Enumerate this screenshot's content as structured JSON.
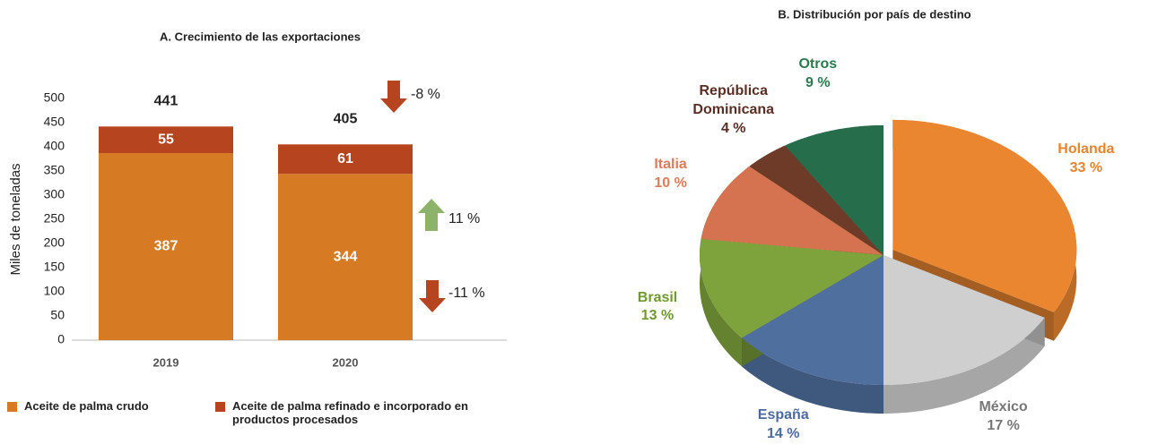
{
  "chart_data": [
    {
      "type": "bar",
      "stacked": true,
      "title": "A. Crecimiento de las exportaciones",
      "ylabel": "Miles de toneladas",
      "categories": [
        "2019",
        "2020"
      ],
      "series": [
        {
          "name": "Aceite de palma crudo",
          "color": "#d67a24",
          "values": [
            387,
            344
          ]
        },
        {
          "name": "Aceite de palma refinado e incorporado en productos procesados",
          "color": "#b5441f",
          "values": [
            55,
            61
          ]
        }
      ],
      "totals": [
        441,
        405
      ],
      "ylim": [
        0,
        500
      ],
      "yticks": [
        0,
        50,
        100,
        150,
        200,
        250,
        300,
        350,
        400,
        450,
        500
      ],
      "annotations": [
        "-8 %",
        "11 %",
        "-11 %"
      ],
      "legend": "bottom"
    },
    {
      "type": "pie",
      "title": "B. Distribución por país de destino",
      "categories": [
        "Holanda",
        "México",
        "España",
        "Brasil",
        "Italia",
        "República Dominicana",
        "Otros"
      ],
      "values": [
        33,
        17,
        14,
        13,
        10,
        4,
        9
      ],
      "value_labels": [
        "33 %",
        "17 %",
        "14 %",
        "13 %",
        "10 %",
        "4 %",
        "9 %"
      ],
      "colors": [
        "#ea8630",
        "#cfcfcf",
        "#4f6f9e",
        "#7ea23c",
        "#d5724f",
        "#6e3b29",
        "#256d4b"
      ],
      "label_colors": [
        "#e8842e",
        "#777777",
        "#4a6aa0",
        "#6f9a2e",
        "#e07a5a",
        "#5a2e22",
        "#2a7a4e"
      ]
    }
  ]
}
